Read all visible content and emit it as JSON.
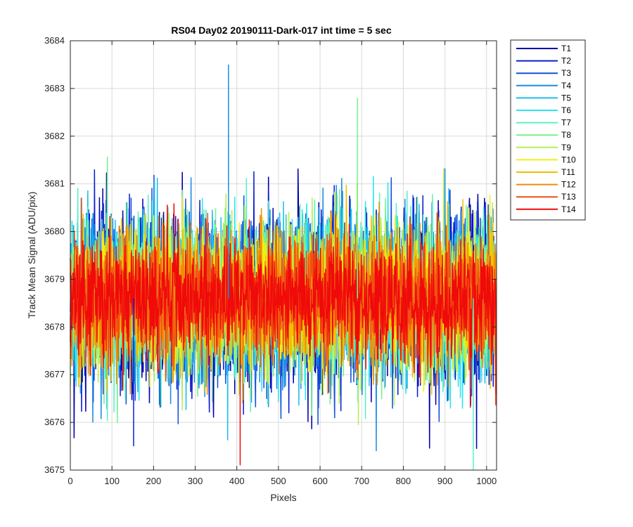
{
  "chart_data": {
    "type": "line",
    "title": "RS04 Day02 20190111-Dark-017 int time = 5 sec",
    "xlabel": "Pixels",
    "ylabel": "Track Mean Signal (ADU/pix)",
    "xlim": [
      0,
      1024
    ],
    "ylim": [
      3675,
      3684
    ],
    "xticks": [
      0,
      100,
      200,
      300,
      400,
      500,
      600,
      700,
      800,
      900,
      1000
    ],
    "yticks": [
      3675,
      3676,
      3677,
      3678,
      3679,
      3680,
      3681,
      3682,
      3683,
      3684
    ],
    "grid": true,
    "legend_position": "outside-top-right",
    "pixel_count": 1024,
    "signal_mean": 3678.6,
    "series": [
      {
        "name": "T1",
        "color": "#0000AA"
      },
      {
        "name": "T2",
        "color": "#0A1ED2"
      },
      {
        "name": "T3",
        "color": "#1450DC"
      },
      {
        "name": "T4",
        "color": "#1A8CE6"
      },
      {
        "name": "T5",
        "color": "#1EBEF0"
      },
      {
        "name": "T6",
        "color": "#28E6F0"
      },
      {
        "name": "T7",
        "color": "#5AF0C8"
      },
      {
        "name": "T8",
        "color": "#78F08C"
      },
      {
        "name": "T9",
        "color": "#B4F050"
      },
      {
        "name": "T10",
        "color": "#F0F014"
      },
      {
        "name": "T11",
        "color": "#F0C000"
      },
      {
        "name": "T12",
        "color": "#F08C0A"
      },
      {
        "name": "T13",
        "color": "#F05014"
      },
      {
        "name": "T14",
        "color": "#F00A0A"
      }
    ],
    "annotations": [
      {
        "series": "T4",
        "x": 380,
        "y": 3683.5
      },
      {
        "series": "T14",
        "x": 408,
        "y": 3675.1
      },
      {
        "series": "T7",
        "x": 968,
        "y": 3675.0
      },
      {
        "series": "T8",
        "x": 690,
        "y": 3682.8
      },
      {
        "series": "T2",
        "x": 152,
        "y": 3675.5
      }
    ]
  }
}
